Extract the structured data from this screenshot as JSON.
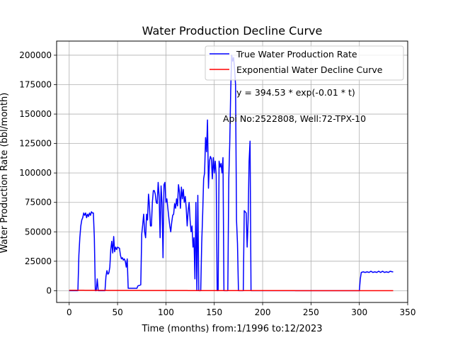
{
  "chart_data": {
    "type": "line",
    "title": "Water Production Decline Curve",
    "xlabel": "Time (months) from:1/1996 to:12/2023",
    "ylabel": "Water Production Rate (bbl/month)",
    "xlim": [
      -13,
      350
    ],
    "ylim": [
      -10000,
      212000
    ],
    "x_ticks": [
      0,
      50,
      100,
      150,
      200,
      250,
      300,
      350
    ],
    "y_ticks": [
      0,
      25000,
      50000,
      75000,
      100000,
      125000,
      150000,
      175000,
      200000
    ],
    "x_tick_labels": [
      "0",
      "50",
      "100",
      "150",
      "200",
      "250",
      "300",
      "350"
    ],
    "y_tick_labels": [
      "0",
      "25000",
      "50000",
      "75000",
      "100000",
      "125000",
      "150000",
      "175000",
      "200000"
    ],
    "grid": true,
    "legend_position": "top-right",
    "annotations": [
      "y = 394.53 * exp(-0.01 * t)",
      "Api No:2522808, Well:72-TPX-10"
    ],
    "series": [
      {
        "name": "True Water Production Rate",
        "color": "#0000ff",
        "points": [
          [
            0,
            0
          ],
          [
            9,
            0
          ],
          [
            10,
            30000
          ],
          [
            11,
            45000
          ],
          [
            12,
            55000
          ],
          [
            13,
            60000
          ],
          [
            14,
            62000
          ],
          [
            15,
            66000
          ],
          [
            16,
            64000
          ],
          [
            17,
            66000
          ],
          [
            18,
            62000
          ],
          [
            19,
            65000
          ],
          [
            20,
            63000
          ],
          [
            21,
            66000
          ],
          [
            22,
            64000
          ],
          [
            23,
            67000
          ],
          [
            24,
            66000
          ],
          [
            25,
            66000
          ],
          [
            26,
            45000
          ],
          [
            27,
            0
          ],
          [
            28,
            0
          ],
          [
            29,
            10000
          ],
          [
            30,
            0
          ],
          [
            37,
            0
          ],
          [
            38,
            12000
          ],
          [
            39,
            17000
          ],
          [
            40,
            14000
          ],
          [
            41,
            15000
          ],
          [
            42,
            20000
          ],
          [
            43,
            35000
          ],
          [
            44,
            42000
          ],
          [
            45,
            32000
          ],
          [
            46,
            46000
          ],
          [
            47,
            33000
          ],
          [
            48,
            37000
          ],
          [
            49,
            35000
          ],
          [
            50,
            37000
          ],
          [
            52,
            36000
          ],
          [
            53,
            30000
          ],
          [
            54,
            27000
          ],
          [
            55,
            28000
          ],
          [
            56,
            26000
          ],
          [
            57,
            27000
          ],
          [
            58,
            25000
          ],
          [
            59,
            20000
          ],
          [
            60,
            27000
          ],
          [
            61,
            2000
          ],
          [
            70,
            2000
          ],
          [
            71,
            4000
          ],
          [
            74,
            5000
          ],
          [
            75,
            48000
          ],
          [
            76,
            56000
          ],
          [
            77,
            65000
          ],
          [
            78,
            50000
          ],
          [
            79,
            45000
          ],
          [
            80,
            65000
          ],
          [
            81,
            60000
          ],
          [
            82,
            82000
          ],
          [
            83,
            72000
          ],
          [
            84,
            55000
          ],
          [
            85,
            55000
          ],
          [
            86,
            75000
          ],
          [
            87,
            85000
          ],
          [
            88,
            85000
          ],
          [
            89,
            82000
          ],
          [
            90,
            75000
          ],
          [
            91,
            74000
          ],
          [
            92,
            92000
          ],
          [
            93,
            80000
          ],
          [
            94,
            45000
          ],
          [
            95,
            89000
          ],
          [
            96,
            74000
          ],
          [
            97,
            28000
          ],
          [
            98,
            90000
          ],
          [
            99,
            92000
          ],
          [
            100,
            75000
          ],
          [
            101,
            78000
          ],
          [
            102,
            70000
          ],
          [
            103,
            62000
          ],
          [
            104,
            55000
          ],
          [
            105,
            50000
          ],
          [
            106,
            58000
          ],
          [
            107,
            64000
          ],
          [
            108,
            65000
          ],
          [
            109,
            74000
          ],
          [
            110,
            70000
          ],
          [
            111,
            78000
          ],
          [
            112,
            72000
          ],
          [
            113,
            90000
          ],
          [
            114,
            84000
          ],
          [
            115,
            70000
          ],
          [
            116,
            88000
          ],
          [
            117,
            78000
          ],
          [
            118,
            86000
          ],
          [
            119,
            75000
          ],
          [
            120,
            80000
          ],
          [
            121,
            70000
          ],
          [
            122,
            55000
          ],
          [
            123,
            68000
          ],
          [
            124,
            75000
          ],
          [
            125,
            60000
          ],
          [
            126,
            50000
          ],
          [
            127,
            55000
          ],
          [
            128,
            37000
          ],
          [
            129,
            45000
          ],
          [
            130,
            10000
          ],
          [
            131,
            75000
          ],
          [
            132,
            0
          ],
          [
            133,
            81000
          ],
          [
            134,
            0
          ],
          [
            136,
            0
          ],
          [
            137,
            40000
          ],
          [
            138,
            65000
          ],
          [
            139,
            95000
          ],
          [
            140,
            100000
          ],
          [
            141,
            130000
          ],
          [
            142,
            118000
          ],
          [
            143,
            145000
          ],
          [
            144,
            87000
          ],
          [
            145,
            110000
          ],
          [
            146,
            114000
          ],
          [
            147,
            112000
          ],
          [
            148,
            95000
          ],
          [
            149,
            113000
          ],
          [
            150,
            100000
          ],
          [
            151,
            110000
          ],
          [
            152,
            98000
          ],
          [
            153,
            0
          ],
          [
            154,
            0
          ],
          [
            155,
            110000
          ],
          [
            156,
            105000
          ],
          [
            157,
            108000
          ],
          [
            158,
            100000
          ],
          [
            159,
            113000
          ],
          [
            160,
            0
          ],
          [
            164,
            0
          ],
          [
            165,
            95000
          ],
          [
            166,
            125000
          ],
          [
            167,
            170000
          ],
          [
            168,
            200000
          ],
          [
            169,
            195000
          ],
          [
            170,
            198000
          ],
          [
            171,
            188000
          ],
          [
            172,
            175000
          ],
          [
            173,
            60000
          ],
          [
            174,
            40000
          ],
          [
            175,
            0
          ],
          [
            180,
            0
          ],
          [
            181,
            68000
          ],
          [
            182,
            67000
          ],
          [
            183,
            66000
          ],
          [
            184,
            37000
          ],
          [
            185,
            60000
          ],
          [
            186,
            110000
          ],
          [
            187,
            127000
          ],
          [
            188,
            0
          ],
          [
            300,
            0
          ],
          [
            301,
            10000
          ],
          [
            302,
            15500
          ],
          [
            304,
            16000
          ],
          [
            306,
            15500
          ],
          [
            308,
            16000
          ],
          [
            310,
            15500
          ],
          [
            312,
            16500
          ],
          [
            314,
            15500
          ],
          [
            316,
            16000
          ],
          [
            318,
            15500
          ],
          [
            320,
            16500
          ],
          [
            322,
            15500
          ],
          [
            324,
            16500
          ],
          [
            326,
            15500
          ],
          [
            328,
            16000
          ],
          [
            330,
            15500
          ],
          [
            332,
            16500
          ],
          [
            334,
            16000
          ],
          [
            335,
            16000
          ]
        ]
      },
      {
        "name": "Exponential Water Decline Curve",
        "color": "#ff0000",
        "equation": {
          "a": 394.53,
          "b": -0.01
        },
        "x_range": [
          0,
          335
        ]
      }
    ]
  }
}
